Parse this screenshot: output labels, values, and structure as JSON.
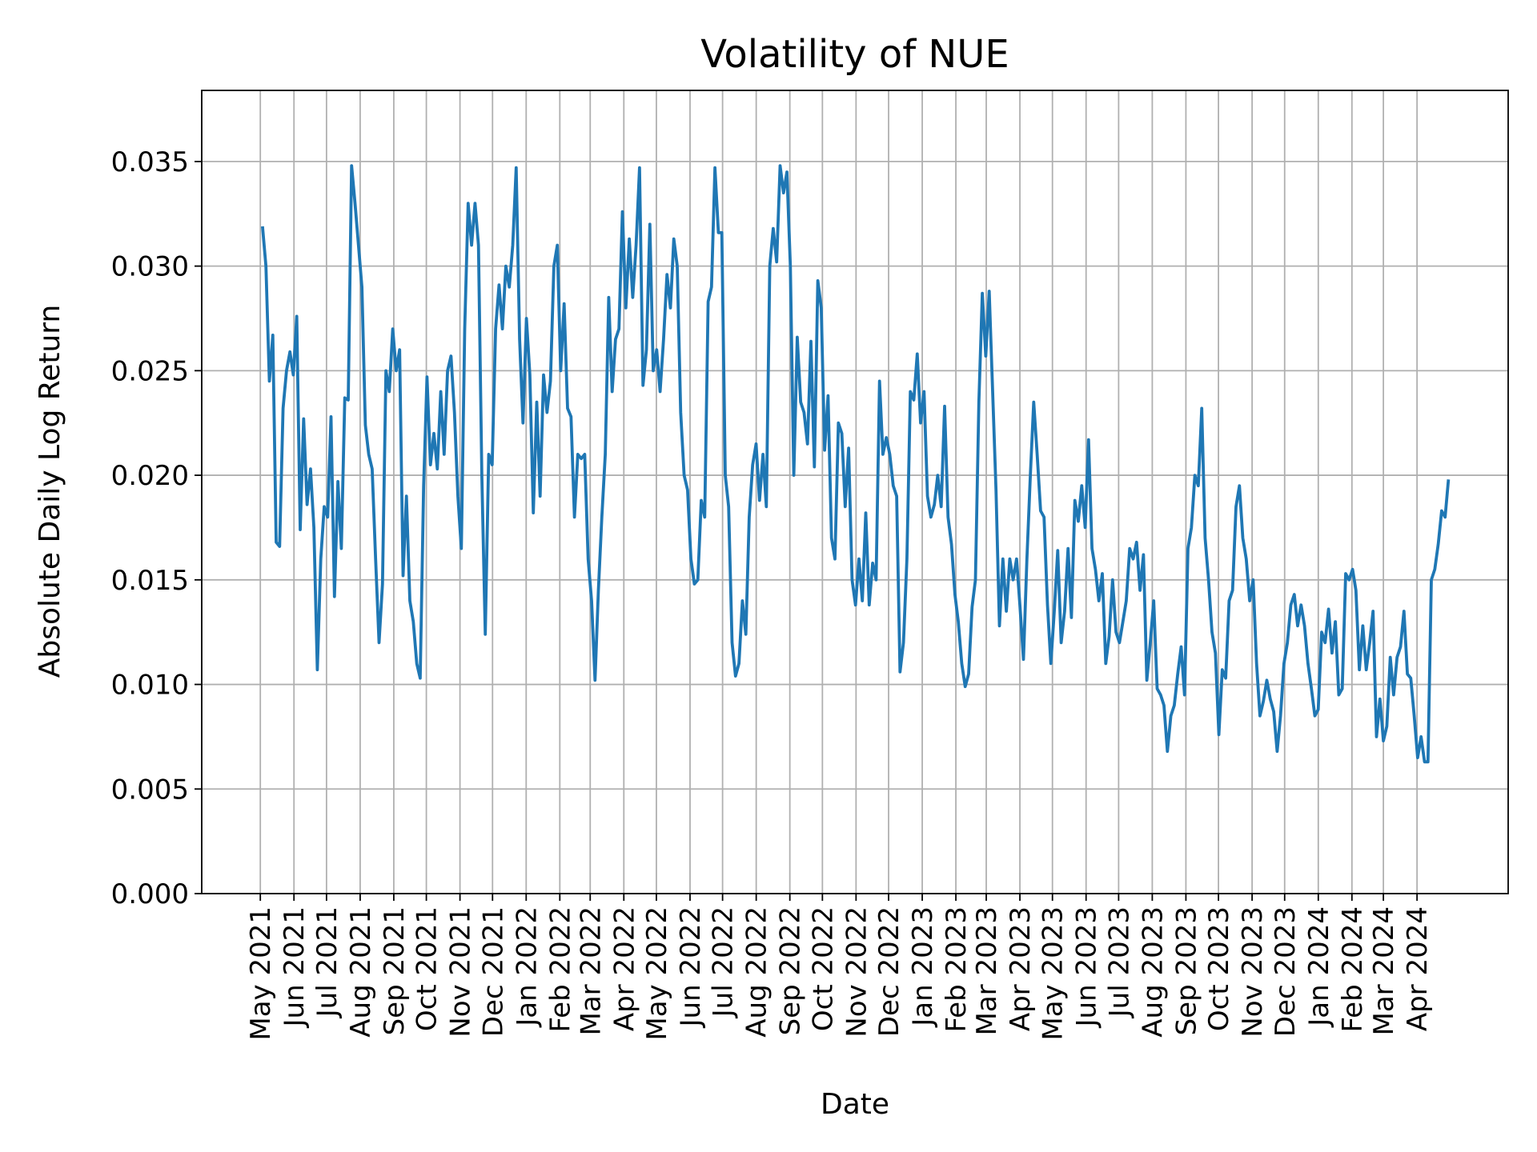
{
  "chart_data": {
    "type": "line",
    "title": "Volatility of NUE",
    "xlabel": "Date",
    "ylabel": "Absolute Daily Log Return",
    "xlim": [
      "2021-03-08",
      "2024-06-24"
    ],
    "ylim": [
      0,
      0.0384
    ],
    "grid": true,
    "line_color": "#1f77b4",
    "yticks": [
      0.0,
      0.005,
      0.01,
      0.015,
      0.02,
      0.025,
      0.03,
      0.035
    ],
    "ytick_labels": [
      "0.000",
      "0.005",
      "0.010",
      "0.015",
      "0.020",
      "0.025",
      "0.030",
      "0.035"
    ],
    "xticks": [
      "2021-05-01",
      "2021-06-01",
      "2021-07-01",
      "2021-08-01",
      "2021-09-01",
      "2021-10-01",
      "2021-11-01",
      "2021-12-01",
      "2022-01-01",
      "2022-02-01",
      "2022-03-01",
      "2022-04-01",
      "2022-05-01",
      "2022-06-01",
      "2022-07-01",
      "2022-08-01",
      "2022-09-01",
      "2022-10-01",
      "2022-11-01",
      "2022-12-01",
      "2023-01-01",
      "2023-02-01",
      "2023-03-01",
      "2023-04-01",
      "2023-05-01",
      "2023-06-01",
      "2023-07-01",
      "2023-08-01",
      "2023-09-01",
      "2023-10-01",
      "2023-11-01",
      "2023-12-01",
      "2024-01-01",
      "2024-02-01",
      "2024-03-01",
      "2024-04-01"
    ],
    "xtick_labels": [
      "May 2021",
      "Jun 2021",
      "Jul 2021",
      "Aug 2021",
      "Sep 2021",
      "Oct 2021",
      "Nov 2021",
      "Dec 2021",
      "Jan 2022",
      "Feb 2022",
      "Mar 2022",
      "Apr 2022",
      "May 2022",
      "Jun 2022",
      "Jul 2022",
      "Aug 2022",
      "Sep 2022",
      "Oct 2022",
      "Nov 2022",
      "Dec 2022",
      "Jan 2023",
      "Feb 2023",
      "Mar 2023",
      "Apr 2023",
      "May 2023",
      "Jun 2023",
      "Jul 2023",
      "Aug 2023",
      "Sep 2023",
      "Oct 2023",
      "Nov 2023",
      "Dec 2023",
      "Jan 2024",
      "Feb 2024",
      "Mar 2024",
      "Apr 2024"
    ],
    "series": [
      {
        "start": "2021-05-03",
        "end": "2024-04-30",
        "values": [
          0.0319,
          0.03,
          0.0245,
          0.0267,
          0.0168,
          0.0166,
          0.0232,
          0.025,
          0.0259,
          0.0248,
          0.0276,
          0.0174,
          0.0227,
          0.0186,
          0.0203,
          0.0175,
          0.0107,
          0.016,
          0.0185,
          0.018,
          0.0228,
          0.0142,
          0.0197,
          0.0165,
          0.0237,
          0.0236,
          0.0348,
          0.033,
          0.031,
          0.029,
          0.0224,
          0.021,
          0.0203,
          0.016,
          0.012,
          0.0148,
          0.025,
          0.024,
          0.027,
          0.025,
          0.026,
          0.0152,
          0.019,
          0.014,
          0.013,
          0.011,
          0.0103,
          0.0195,
          0.0247,
          0.0205,
          0.022,
          0.0203,
          0.024,
          0.021,
          0.025,
          0.0257,
          0.023,
          0.019,
          0.0165,
          0.027,
          0.033,
          0.031,
          0.033,
          0.031,
          0.02,
          0.0124,
          0.021,
          0.0205,
          0.027,
          0.0291,
          0.027,
          0.03,
          0.029,
          0.031,
          0.0347,
          0.0265,
          0.0225,
          0.0275,
          0.0248,
          0.0182,
          0.0235,
          0.019,
          0.0248,
          0.023,
          0.0245,
          0.03,
          0.031,
          0.025,
          0.0282,
          0.0232,
          0.0228,
          0.018,
          0.021,
          0.0208,
          0.021,
          0.016,
          0.014,
          0.0102,
          0.0145,
          0.018,
          0.021,
          0.0285,
          0.024,
          0.0265,
          0.027,
          0.0326,
          0.028,
          0.0313,
          0.0285,
          0.031,
          0.0347,
          0.0243,
          0.026,
          0.032,
          0.025,
          0.026,
          0.024,
          0.0265,
          0.0296,
          0.028,
          0.0313,
          0.03,
          0.023,
          0.02,
          0.0193,
          0.016,
          0.0148,
          0.015,
          0.0188,
          0.018,
          0.0283,
          0.029,
          0.0347,
          0.0316,
          0.0316,
          0.02,
          0.0185,
          0.012,
          0.0104,
          0.011,
          0.014,
          0.0124,
          0.018,
          0.0205,
          0.0215,
          0.0188,
          0.021,
          0.0185,
          0.03,
          0.0318,
          0.0302,
          0.0348,
          0.0335,
          0.0345,
          0.03,
          0.02,
          0.0266,
          0.0235,
          0.023,
          0.0215,
          0.0264,
          0.0204,
          0.0293,
          0.028,
          0.0212,
          0.0238,
          0.017,
          0.016,
          0.0225,
          0.022,
          0.0185,
          0.0213,
          0.015,
          0.0138,
          0.016,
          0.014,
          0.0182,
          0.0138,
          0.0158,
          0.015,
          0.0245,
          0.021,
          0.0218,
          0.021,
          0.0195,
          0.019,
          0.0106,
          0.012,
          0.016,
          0.024,
          0.0236,
          0.0258,
          0.0225,
          0.024,
          0.019,
          0.018,
          0.0186,
          0.02,
          0.0185,
          0.0233,
          0.018,
          0.0167,
          0.0143,
          0.013,
          0.011,
          0.0099,
          0.0105,
          0.0137,
          0.015,
          0.0235,
          0.0287,
          0.0257,
          0.0288,
          0.024,
          0.0193,
          0.0128,
          0.016,
          0.0135,
          0.016,
          0.015,
          0.016,
          0.0137,
          0.0112,
          0.016,
          0.02,
          0.0235,
          0.021,
          0.0183,
          0.018,
          0.0138,
          0.011,
          0.0135,
          0.0164,
          0.012,
          0.0135,
          0.0165,
          0.0132,
          0.0188,
          0.0178,
          0.0195,
          0.0175,
          0.0217,
          0.0165,
          0.0155,
          0.014,
          0.0153,
          0.011,
          0.0123,
          0.015,
          0.0125,
          0.012,
          0.013,
          0.014,
          0.0165,
          0.016,
          0.0168,
          0.0145,
          0.0162,
          0.0102,
          0.012,
          0.014,
          0.0098,
          0.0095,
          0.009,
          0.0068,
          0.0085,
          0.009,
          0.0105,
          0.0118,
          0.0095,
          0.0165,
          0.0175,
          0.02,
          0.0195,
          0.0232,
          0.017,
          0.015,
          0.0125,
          0.0115,
          0.0076,
          0.0107,
          0.0103,
          0.014,
          0.0145,
          0.0185,
          0.0195,
          0.017,
          0.016,
          0.014,
          0.015,
          0.011,
          0.0085,
          0.0092,
          0.0102,
          0.0093,
          0.0087,
          0.0068,
          0.0085,
          0.011,
          0.012,
          0.0138,
          0.0143,
          0.0128,
          0.0138,
          0.0128,
          0.011,
          0.0098,
          0.0085,
          0.0088,
          0.0125,
          0.012,
          0.0136,
          0.0115,
          0.013,
          0.0095,
          0.0098,
          0.0153,
          0.015,
          0.0155,
          0.0145,
          0.0107,
          0.0128,
          0.0107,
          0.012,
          0.0135,
          0.0075,
          0.0093,
          0.0073,
          0.008,
          0.0113,
          0.0095,
          0.0113,
          0.0118,
          0.0135,
          0.0105,
          0.0103,
          0.0085,
          0.0065,
          0.0075,
          0.0063,
          0.0063,
          0.015,
          0.0155,
          0.0167,
          0.0183,
          0.018,
          0.0198
        ]
      }
    ]
  }
}
